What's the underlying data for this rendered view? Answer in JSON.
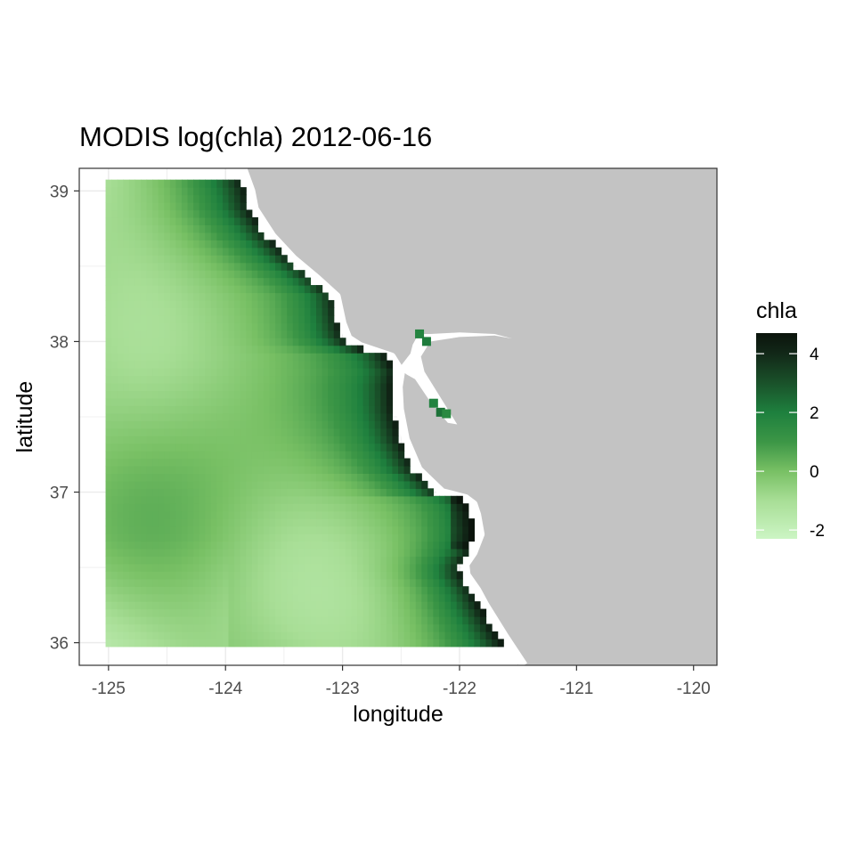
{
  "title": "MODIS log(chla) 2012-06-16",
  "colors": {
    "land": "#c3c3c3",
    "background": "#ffffff",
    "grid": "#ebebeb",
    "frame": "#333333",
    "scale_low": "#ccf5c4",
    "scale_mid": "#219145",
    "scale_high": "#0b140c"
  },
  "chart_data": {
    "type": "heatmap",
    "title": "MODIS log(chla) 2012-06-16",
    "xlabel": "longitude",
    "ylabel": "latitude",
    "xlim": [
      -125.25,
      -119.8
    ],
    "ylim": [
      35.85,
      39.15
    ],
    "x_ticks": [
      -125,
      -124,
      -123,
      -122,
      -121,
      -120
    ],
    "x_tick_labels": [
      "-125",
      "-124",
      "-123",
      "-122",
      "-121",
      "-120"
    ],
    "y_ticks": [
      36,
      37,
      38,
      39
    ],
    "y_tick_labels": [
      "36",
      "37",
      "38",
      "39"
    ],
    "grid": true,
    "data_extent": {
      "lon": [
        -125.0,
        -121.6
      ],
      "lat": [
        36.0,
        39.05
      ]
    },
    "cell_size_deg": 0.05,
    "legend": {
      "title": "chla",
      "placement": "right",
      "range": [
        -2.3,
        4.7
      ],
      "ticks": [
        -2,
        0,
        2,
        4
      ],
      "tick_labels": [
        "-2",
        "0",
        "2",
        "4"
      ]
    },
    "coastline": [
      [
        -123.85,
        39.15
      ],
      [
        -123.78,
        39.0
      ],
      [
        -123.75,
        38.88
      ],
      [
        -123.6,
        38.7
      ],
      [
        -123.42,
        38.55
      ],
      [
        -123.22,
        38.42
      ],
      [
        -123.05,
        38.3
      ],
      [
        -123.0,
        38.12
      ],
      [
        -122.95,
        38.02
      ],
      [
        -122.85,
        37.97
      ],
      [
        -122.58,
        37.9
      ],
      [
        -122.5,
        37.8
      ],
      [
        -122.52,
        37.7
      ],
      [
        -122.51,
        37.55
      ],
      [
        -122.46,
        37.35
      ],
      [
        -122.35,
        37.15
      ],
      [
        -122.15,
        37.0
      ],
      [
        -121.95,
        36.96
      ],
      [
        -121.88,
        36.92
      ],
      [
        -121.85,
        36.85
      ],
      [
        -121.82,
        36.72
      ],
      [
        -121.88,
        36.6
      ],
      [
        -121.95,
        36.52
      ],
      [
        -121.94,
        36.45
      ],
      [
        -121.85,
        36.35
      ],
      [
        -121.78,
        36.25
      ],
      [
        -121.62,
        36.05
      ],
      [
        -121.45,
        35.85
      ]
    ],
    "sample_values": [
      {
        "lon": -125.0,
        "lat": 38.0,
        "value": -0.5
      },
      {
        "lon": -124.0,
        "lat": 37.5,
        "value": 0.5
      },
      {
        "lon": -123.2,
        "lat": 38.5,
        "value": 3.5
      },
      {
        "lon": -122.7,
        "lat": 37.7,
        "value": 3.6
      },
      {
        "lon": -121.95,
        "lat": 36.8,
        "value": 4.0
      },
      {
        "lon": -124.7,
        "lat": 36.4,
        "value": -1.0
      },
      {
        "lon": -122.3,
        "lat": 38.0,
        "value": 2.0
      },
      {
        "lon": -122.2,
        "lat": 37.55,
        "value": 2.0
      }
    ]
  }
}
